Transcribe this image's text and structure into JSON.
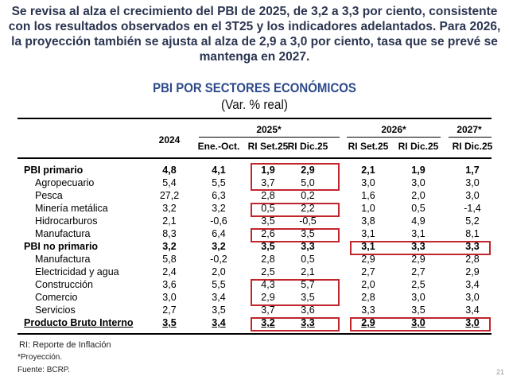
{
  "headline": "Se revisa al alza el crecimiento del PBI de 2025, de 3,2 a 3,3 por ciento, consistente con los resultados observados en el 3T25 y los indicadores adelantados. Para 2026, la proyección también se ajusta al alza de 2,9 a 3,0 por ciento, tasa que se prevé se mantenga en 2027.",
  "table_title": "PBI POR SECTORES ECONÓMICOS",
  "table_subtitle": "(Var. % real)",
  "header": {
    "year_2024": "2024",
    "group_2025": "2025*",
    "group_2026": "2026*",
    "group_2027": "2027*",
    "columns": [
      "Ene.-Oct.",
      "RI Set.25",
      "RI Dic.25",
      "RI Set.25",
      "RI Dic.25",
      "RI Dic.25"
    ]
  },
  "rows": [
    {
      "label": "PBI primario",
      "style": "bold",
      "values": [
        "4,8",
        "4,1",
        "1,9",
        "2,9",
        "2,1",
        "1,9",
        "1,7"
      ]
    },
    {
      "label": "Agropecuario",
      "style": "sub",
      "values": [
        "5,4",
        "5,5",
        "3,7",
        "5,0",
        "3,0",
        "3,0",
        "3,0"
      ]
    },
    {
      "label": "Pesca",
      "style": "sub",
      "values": [
        "27,2",
        "6,3",
        "2,8",
        "0,2",
        "1,6",
        "2,0",
        "3,0"
      ]
    },
    {
      "label": "Minería metálica",
      "style": "sub",
      "values": [
        "3,2",
        "3,2",
        "0,5",
        "2,2",
        "1,0",
        "0,5",
        "-1,4"
      ]
    },
    {
      "label": "Hidrocarburos",
      "style": "sub",
      "values": [
        "2,1",
        "-0,6",
        "3,5",
        "-0,5",
        "3,8",
        "4,9",
        "5,2"
      ]
    },
    {
      "label": "Manufactura",
      "style": "sub",
      "values": [
        "8,3",
        "6,4",
        "2,6",
        "3,5",
        "3,1",
        "3,1",
        "8,1"
      ]
    },
    {
      "label": "PBI no primario",
      "style": "bold",
      "values": [
        "3,2",
        "3,2",
        "3,5",
        "3,3",
        "3,1",
        "3,3",
        "3,3"
      ]
    },
    {
      "label": "Manufactura",
      "style": "sub",
      "values": [
        "5,8",
        "-0,2",
        "2,8",
        "0,5",
        "2,9",
        "2,9",
        "2,8"
      ]
    },
    {
      "label": "Electricidad y agua",
      "style": "sub",
      "values": [
        "2,4",
        "2,0",
        "2,5",
        "2,1",
        "2,7",
        "2,7",
        "2,9"
      ]
    },
    {
      "label": "Construcción",
      "style": "sub",
      "values": [
        "3,6",
        "5,5",
        "4,3",
        "5,7",
        "2,0",
        "2,5",
        "3,4"
      ]
    },
    {
      "label": "Comercio",
      "style": "sub",
      "values": [
        "3,0",
        "3,4",
        "2,9",
        "3,5",
        "2,8",
        "3,0",
        "3,0"
      ]
    },
    {
      "label": "Servicios",
      "style": "sub",
      "values": [
        "2,7",
        "3,5",
        "3,7",
        "3,6",
        "3,3",
        "3,5",
        "3,4"
      ]
    },
    {
      "label": "Producto Bruto Interno",
      "style": "total",
      "values": [
        "3,5",
        "3,4",
        "3,2",
        "3,3",
        "2,9",
        "3,0",
        "3,0"
      ]
    }
  ],
  "notes": [
    "RI: Reporte de Inflación",
    "*Proyección.",
    "Fuente: BCRP."
  ],
  "page_number": "21",
  "colors": {
    "headline": "#2b3550",
    "title": "#2e4a8a",
    "highlight_box": "#c0262c"
  }
}
